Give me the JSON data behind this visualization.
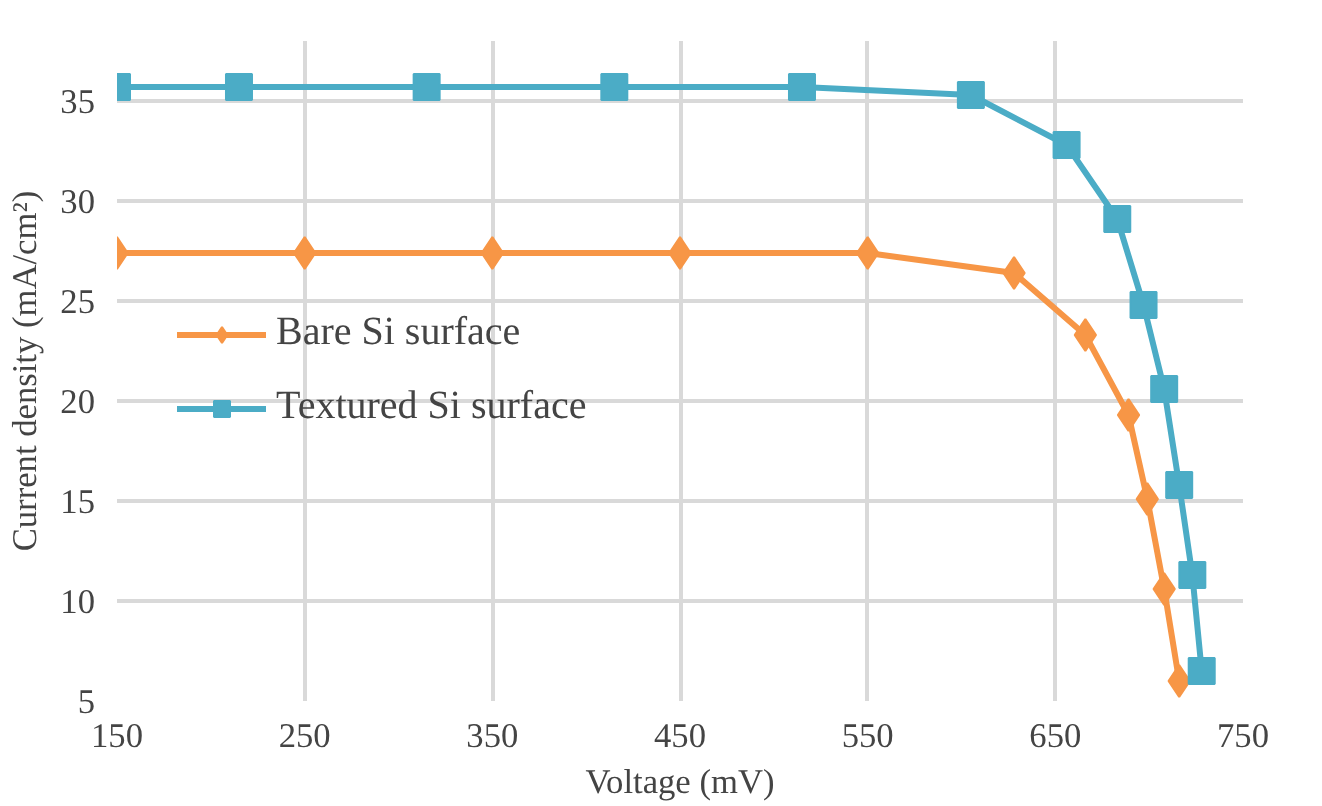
{
  "chart_data": {
    "type": "line",
    "xlabel": "Voltage (mV)",
    "ylabel": "Current density (mA/cm²)",
    "series": [
      {
        "name": "Bare Si surface",
        "color": "#f79646",
        "marker": "diamond",
        "x": [
          150,
          250,
          350,
          450,
          550,
          628,
          666,
          689,
          699,
          708,
          716
        ],
        "values": [
          27.4,
          27.4,
          27.4,
          27.4,
          27.4,
          26.4,
          23.3,
          19.3,
          15.1,
          10.6,
          6.0
        ]
      },
      {
        "name": "Textured Si surface",
        "color": "#4bacc6",
        "marker": "square",
        "x": [
          150,
          215,
          315,
          415,
          515,
          605,
          656,
          683,
          697,
          708,
          716,
          723,
          728
        ],
        "values": [
          35.7,
          35.7,
          35.7,
          35.7,
          35.7,
          35.3,
          32.8,
          29.1,
          24.8,
          20.6,
          15.8,
          11.3,
          6.5
        ]
      }
    ],
    "xlim": [
      150,
      750
    ],
    "ylim": [
      5,
      38
    ],
    "xticks": [
      150,
      250,
      350,
      450,
      550,
      650,
      750
    ],
    "yticks": [
      5,
      10,
      15,
      20,
      25,
      30,
      35
    ],
    "grid": true,
    "legend": "left",
    "line_style": "solid"
  }
}
